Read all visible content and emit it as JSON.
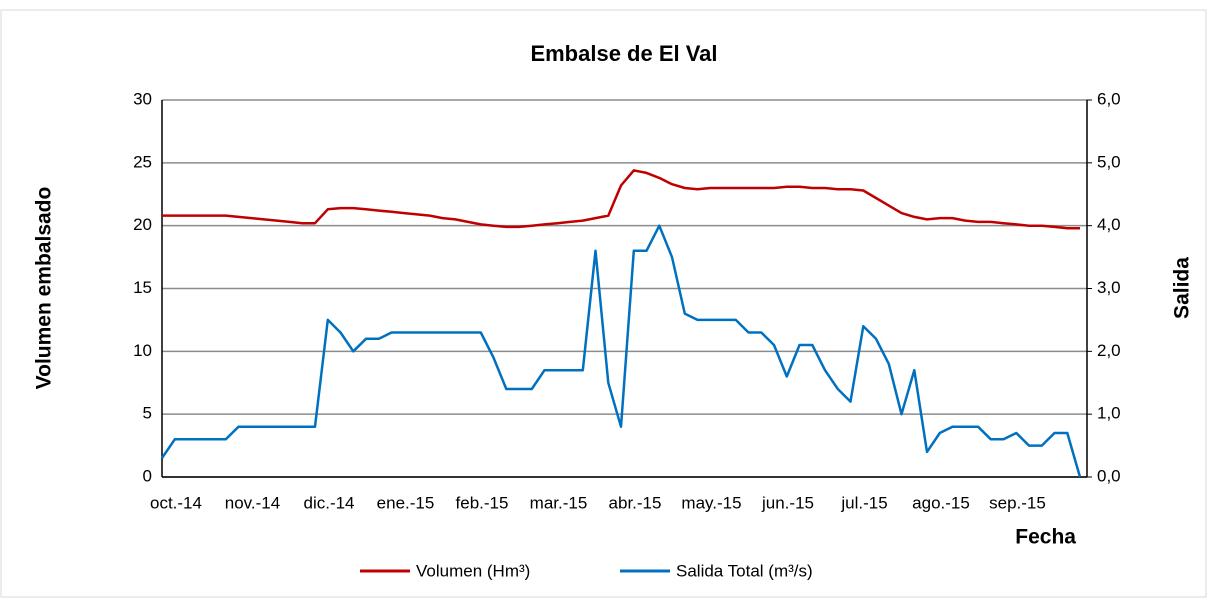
{
  "chart_data": {
    "type": "line",
    "title": "Embalse de El Val",
    "x_label": "Fecha",
    "y_label": "Volumen embalsado",
    "y2_label": "Salida",
    "categories": [
      "oct.-14",
      null,
      null,
      null,
      null,
      null,
      "nov.-14",
      null,
      null,
      null,
      null,
      null,
      "dic.-14",
      null,
      null,
      null,
      null,
      null,
      "ene.-15",
      null,
      null,
      null,
      null,
      null,
      "feb.-15",
      null,
      null,
      null,
      null,
      null,
      "mar.-15",
      null,
      null,
      null,
      null,
      null,
      "abr.-15",
      null,
      null,
      null,
      null,
      null,
      "may.-15",
      null,
      null,
      null,
      null,
      null,
      "jun.-15",
      null,
      null,
      null,
      null,
      null,
      "jul.-15",
      null,
      null,
      null,
      null,
      null,
      "ago.-15",
      null,
      null,
      null,
      null,
      null,
      "sep.-15",
      null,
      null,
      null,
      null,
      null,
      null
    ],
    "series": [
      {
        "name": "Volumen (Hm³)",
        "color": "#c00000",
        "axis": "y",
        "values": [
          20.8,
          20.8,
          20.8,
          20.8,
          20.8,
          20.8,
          20.7,
          20.6,
          20.5,
          20.4,
          20.3,
          20.2,
          20.2,
          21.3,
          21.4,
          21.4,
          21.3,
          21.2,
          21.1,
          21.0,
          20.9,
          20.8,
          20.6,
          20.5,
          20.3,
          20.1,
          20.0,
          19.9,
          19.9,
          20.0,
          20.1,
          20.2,
          20.3,
          20.4,
          20.6,
          20.8,
          23.2,
          24.4,
          24.2,
          23.8,
          23.3,
          23.0,
          22.9,
          23.0,
          23.0,
          23.0,
          23.0,
          23.0,
          23.0,
          23.1,
          23.1,
          23.0,
          23.0,
          22.9,
          22.9,
          22.8,
          22.2,
          21.6,
          21.0,
          20.7,
          20.5,
          20.6,
          20.6,
          20.4,
          20.3,
          20.3,
          20.2,
          20.1,
          20.0,
          20.0,
          19.9,
          19.8,
          19.8
        ]
      },
      {
        "name": "Salida Total (m³/s)",
        "color": "#0070c0",
        "axis": "y2",
        "values": [
          0.3,
          0.6,
          0.6,
          0.6,
          0.6,
          0.6,
          0.8,
          0.8,
          0.8,
          0.8,
          0.8,
          0.8,
          0.8,
          2.5,
          2.3,
          2.0,
          2.2,
          2.2,
          2.3,
          2.3,
          2.3,
          2.3,
          2.3,
          2.3,
          2.3,
          2.3,
          1.9,
          1.4,
          1.4,
          1.4,
          1.7,
          1.7,
          1.7,
          1.7,
          3.6,
          1.5,
          0.8,
          3.6,
          3.6,
          4.0,
          3.5,
          2.6,
          2.5,
          2.5,
          2.5,
          2.5,
          2.3,
          2.3,
          2.1,
          1.6,
          2.1,
          2.1,
          1.7,
          1.4,
          1.2,
          2.4,
          2.2,
          1.8,
          1.0,
          1.7,
          0.4,
          0.7,
          0.8,
          0.8,
          0.8,
          0.6,
          0.6,
          0.7,
          0.5,
          0.5,
          0.7,
          0.7,
          0.0
        ]
      }
    ],
    "ylim": [
      0,
      30
    ],
    "yticks": [
      0,
      5,
      10,
      15,
      20,
      25,
      30
    ],
    "y2lim": [
      0,
      6
    ],
    "y2ticks": [
      {
        "value": 0,
        "label": "0,0"
      },
      {
        "value": 1,
        "label": "1,0"
      },
      {
        "value": 2,
        "label": "2,0"
      },
      {
        "value": 3,
        "label": "3,0"
      },
      {
        "value": 4,
        "label": "4,0"
      },
      {
        "value": 5,
        "label": "5,0"
      },
      {
        "value": 6,
        "label": "6,0"
      }
    ],
    "grid": true,
    "legend": "bottom"
  }
}
